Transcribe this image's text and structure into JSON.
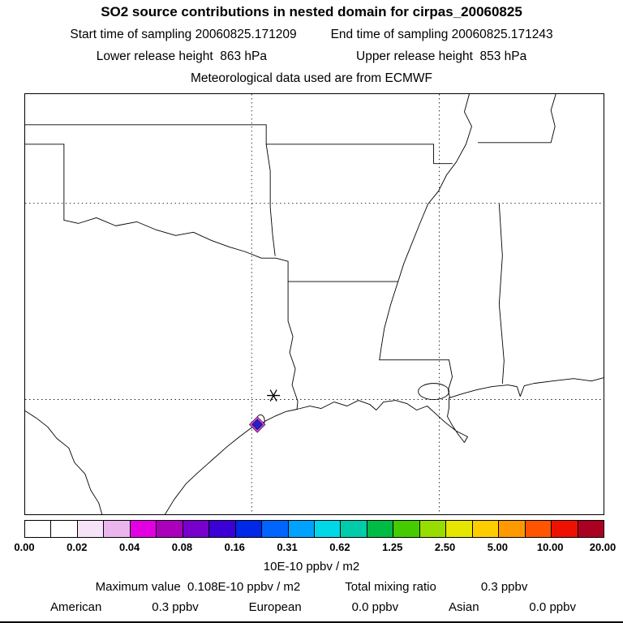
{
  "header": {
    "title": "SO2 source contributions in nested domain for cirpas_20060825",
    "start_time": "Start time of sampling 20060825.171209",
    "end_time": "End time of sampling 20060825.171243",
    "lower_release": "Lower release height  863 hPa",
    "upper_release": "Upper release height  853 hPa",
    "met_source": "Meteorological data used are from ECMWF"
  },
  "map": {
    "markers": {
      "star": "sampling-location",
      "diamond": "source-contribution-cell"
    },
    "marker_colors": {
      "diamond_ring": "#cc44dd",
      "diamond_fill": "#2222cc"
    }
  },
  "colorbar": {
    "colors": [
      "#ffffff",
      "#ffffff",
      "#f7e3f7",
      "#eab5ec",
      "#e200e2",
      "#aa00bb",
      "#7700cc",
      "#3b00d6",
      "#0028e8",
      "#0064ff",
      "#00a2ff",
      "#00d8e8",
      "#00ccaa",
      "#00bb44",
      "#44cc00",
      "#99dd00",
      "#e6e600",
      "#ffcc00",
      "#ff9900",
      "#ff5500",
      "#ee1100",
      "#aa0022"
    ],
    "tick_labels": [
      "0.00",
      "0.02",
      "0.04",
      "0.08",
      "0.16",
      "0.31",
      "0.62",
      "1.25",
      "2.50",
      "5.00",
      "10.00",
      "20.00"
    ],
    "units": "10E-10 ppbv / m2"
  },
  "footer": {
    "max_label": "Maximum value  0.108E-10 ppbv / m2",
    "total_label": "Total mixing ratio",
    "total_value": "0.3 ppbv",
    "contributions": [
      {
        "region": "American",
        "value": "0.3 ppbv"
      },
      {
        "region": "European",
        "value": "0.0 ppbv"
      },
      {
        "region": "Asian",
        "value": "0.0 ppbv"
      }
    ]
  },
  "chart_data": {
    "type": "heatmap",
    "title": "SO2 source contributions in nested domain for cirpas_20060825",
    "colorbar_scale": [
      0.0,
      0.02,
      0.04,
      0.08,
      0.16,
      0.31,
      0.62,
      1.25,
      2.5,
      5.0,
      10.0,
      20.0
    ],
    "units": "10E-10 ppbv / m2",
    "maximum_value": "0.108E-10 ppbv / m2",
    "total_mixing_ratio_ppbv": 0.3,
    "contributions_ppbv": {
      "American": 0.3,
      "European": 0.0,
      "Asian": 0.0
    },
    "sampling_start": "20060825.171209",
    "sampling_end": "20060825.171243",
    "release_heights_hPa": {
      "lower": 863,
      "upper": 853
    },
    "met_data_source": "ECMWF",
    "legend_position": "bottom",
    "grid": "dashed lat/lon lines"
  }
}
